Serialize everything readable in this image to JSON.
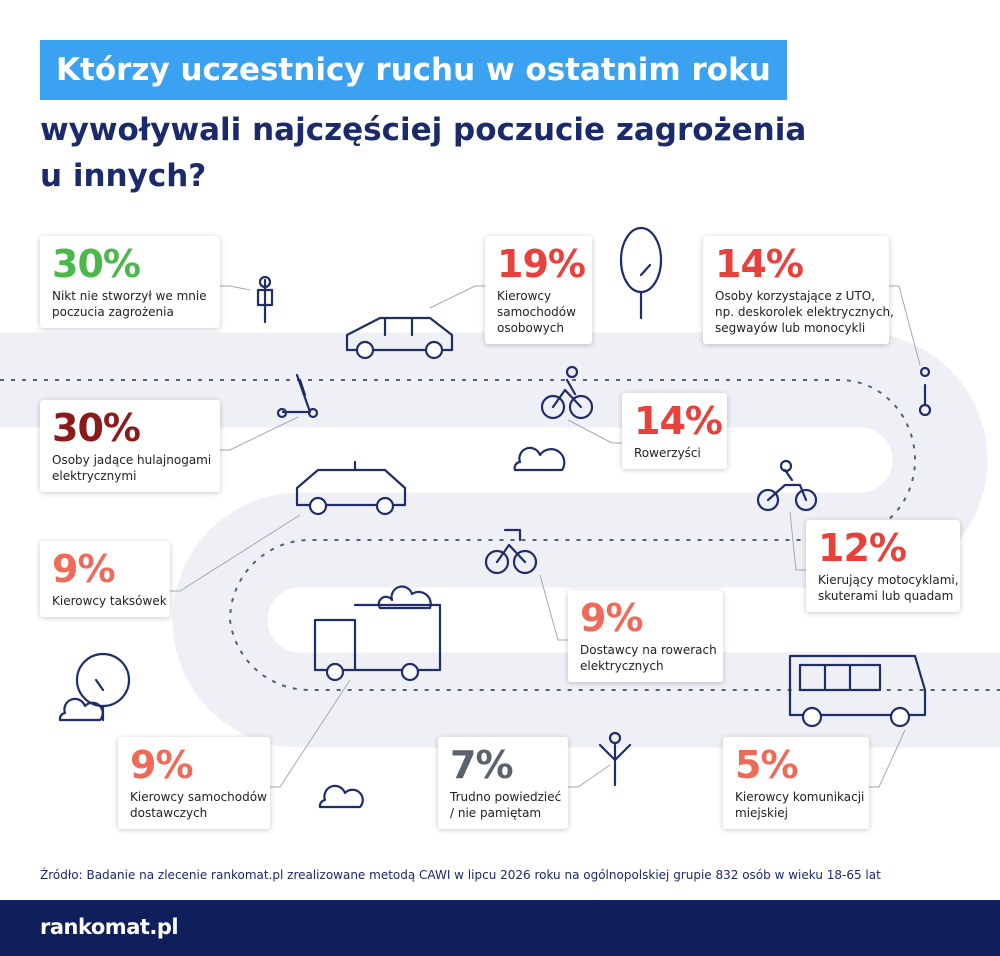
{
  "header": {
    "title_highlight": "Którzy uczestnicy ruchu w ostatnim roku",
    "title_lines": [
      "wywoływali najczęściej poczucie zagrożenia",
      "u innych?"
    ]
  },
  "items": [
    {
      "percent": "30%",
      "lines": [
        "Nikt nie stworzył we mnie",
        "poczucia zagrożenia"
      ]
    },
    {
      "percent": "19%",
      "lines": [
        "Kierowcy",
        "samochodów",
        "osobowych"
      ]
    },
    {
      "percent": "14%",
      "lines": [
        "Osoby korzystające z UTO,",
        "np. deskorolek elektrycznych,",
        "segwayów lub monocykli"
      ]
    },
    {
      "percent": "30%",
      "lines": [
        "Osoby jadące hulajnogami",
        "elektrycznymi"
      ]
    },
    {
      "percent": "14%",
      "lines": [
        "Rowerzyści"
      ]
    },
    {
      "percent": "9%",
      "lines": [
        "Kierowcy taksówek"
      ]
    },
    {
      "percent": "12%",
      "lines": [
        "Kierujący motocyklami,",
        "skuterami lub quadam"
      ]
    },
    {
      "percent": "9%",
      "lines": [
        "Dostawcy na rowerach",
        "elektrycznych"
      ]
    },
    {
      "percent": "9%",
      "lines": [
        "Kierowcy samochodów",
        "dostawczych"
      ]
    },
    {
      "percent": "7%",
      "lines": [
        "Trudno powiedzieć",
        "/ nie pamiętam"
      ]
    },
    {
      "percent": "5%",
      "lines": [
        "Kierowcy komunikacji",
        "miejskiej"
      ]
    }
  ],
  "source": "Źródło: Badanie na zlecenie rankomat.pl zrealizowane metodą CAWI w lipcu 2026 roku na ogólnopolskiej grupie 832 osób w wieku 18-65 lat",
  "logo": "rankomat.pl"
}
